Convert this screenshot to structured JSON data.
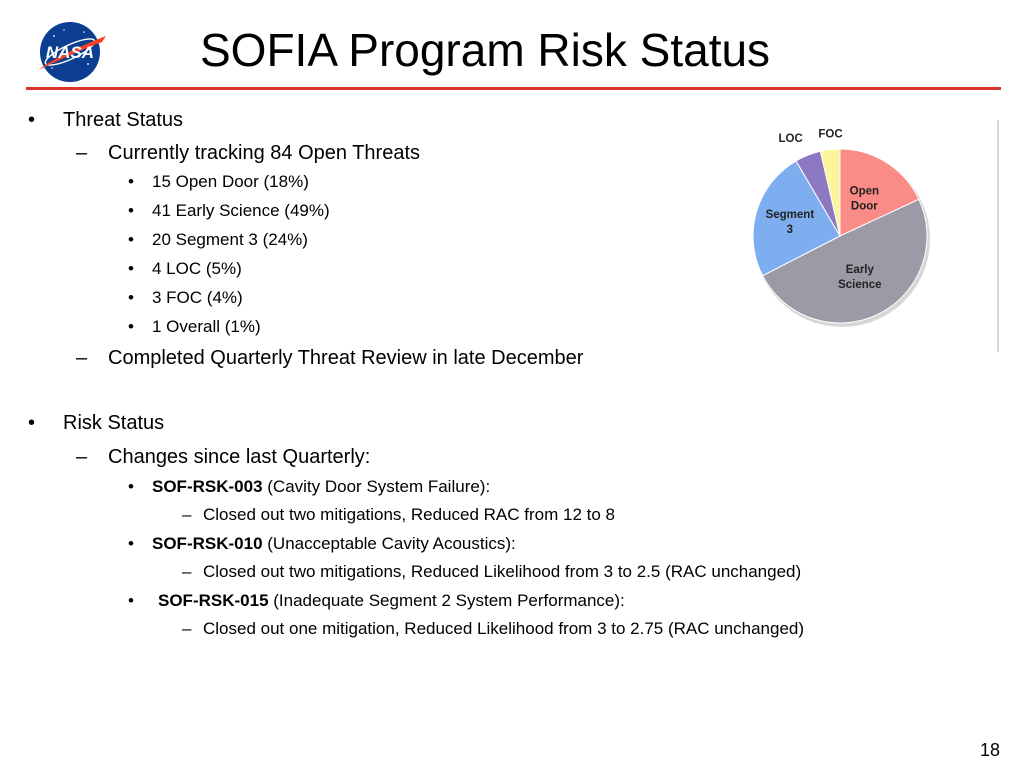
{
  "slide": {
    "title": "SOFIA Program Risk Status",
    "page_number": "18",
    "colors": {
      "title_rule": "#d9342b",
      "nasa_blue": "#0b3d91",
      "nasa_red": "#fc3d21"
    }
  },
  "logo": {
    "text": "NASA",
    "icon": "nasa-meatball-logo"
  },
  "threat": {
    "heading": "Threat Status",
    "tracking": "Currently tracking 84 Open Threats",
    "items": [
      "15 Open Door (18%)",
      "41 Early Science (49%)",
      "20 Segment 3 (24%)",
      "4 LOC (5%)",
      "3 FOC (4%)",
      "1 Overall (1%)"
    ],
    "review": "Completed Quarterly Threat Review in late December"
  },
  "risk": {
    "heading": "Risk Status",
    "changes": "Changes since last Quarterly:",
    "items": [
      {
        "id": "SOF-RSK-003",
        "desc": " (Cavity Door System Failure):",
        "detail": "Closed out two mitigations, Reduced RAC from 12 to 8"
      },
      {
        "id": "SOF-RSK-010",
        "desc": " (Unacceptable Cavity Acoustics):",
        "detail": "Closed out two mitigations, Reduced Likelihood from 3 to 2.5 (RAC unchanged)"
      },
      {
        "id": "SOF-RSK-015",
        "desc": " (Inadequate Segment 2 System Performance):",
        "detail": "Closed out one mitigation, Reduced Likelihood from 3 to 2.75 (RAC unchanged)"
      }
    ]
  },
  "chart_data": {
    "type": "pie",
    "start_angle_deg": 0,
    "direction": "clockwise",
    "slices": [
      {
        "label": [
          "Open",
          "Door"
        ],
        "value": 15,
        "color": "#fb8b86"
      },
      {
        "label": [
          "Early",
          "Science"
        ],
        "value": 41,
        "color": "#9c9aa7"
      },
      {
        "label": [
          "Segment",
          "3"
        ],
        "value": 20,
        "color": "#7eaef0"
      },
      {
        "label": [
          "LOC"
        ],
        "value": 4,
        "color": "#8d78c2"
      },
      {
        "label": [
          "FOC"
        ],
        "value": 3,
        "color": "#fbf69a"
      }
    ]
  }
}
